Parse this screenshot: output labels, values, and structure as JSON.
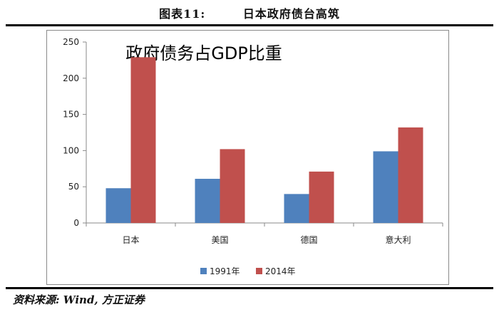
{
  "header": {
    "figure_label": "图表11:",
    "figure_title": "日本政府债台高筑"
  },
  "source": "资料来源: Wind, 方正证券",
  "chart_data": {
    "type": "bar",
    "title": "政府债务占GDP比重",
    "categories": [
      "日本",
      "美国",
      "德国",
      "意大利"
    ],
    "series": [
      {
        "name": "1991年",
        "color": "#4F81BD",
        "values": [
          48,
          61,
          40,
          99
        ]
      },
      {
        "name": "2014年",
        "color": "#C0504D",
        "values": [
          229,
          102,
          71,
          132
        ]
      }
    ],
    "ylim": [
      0,
      250
    ],
    "yticks": [
      0,
      50,
      100,
      150,
      200,
      250
    ],
    "grid": false,
    "legend_position": "bottom"
  }
}
